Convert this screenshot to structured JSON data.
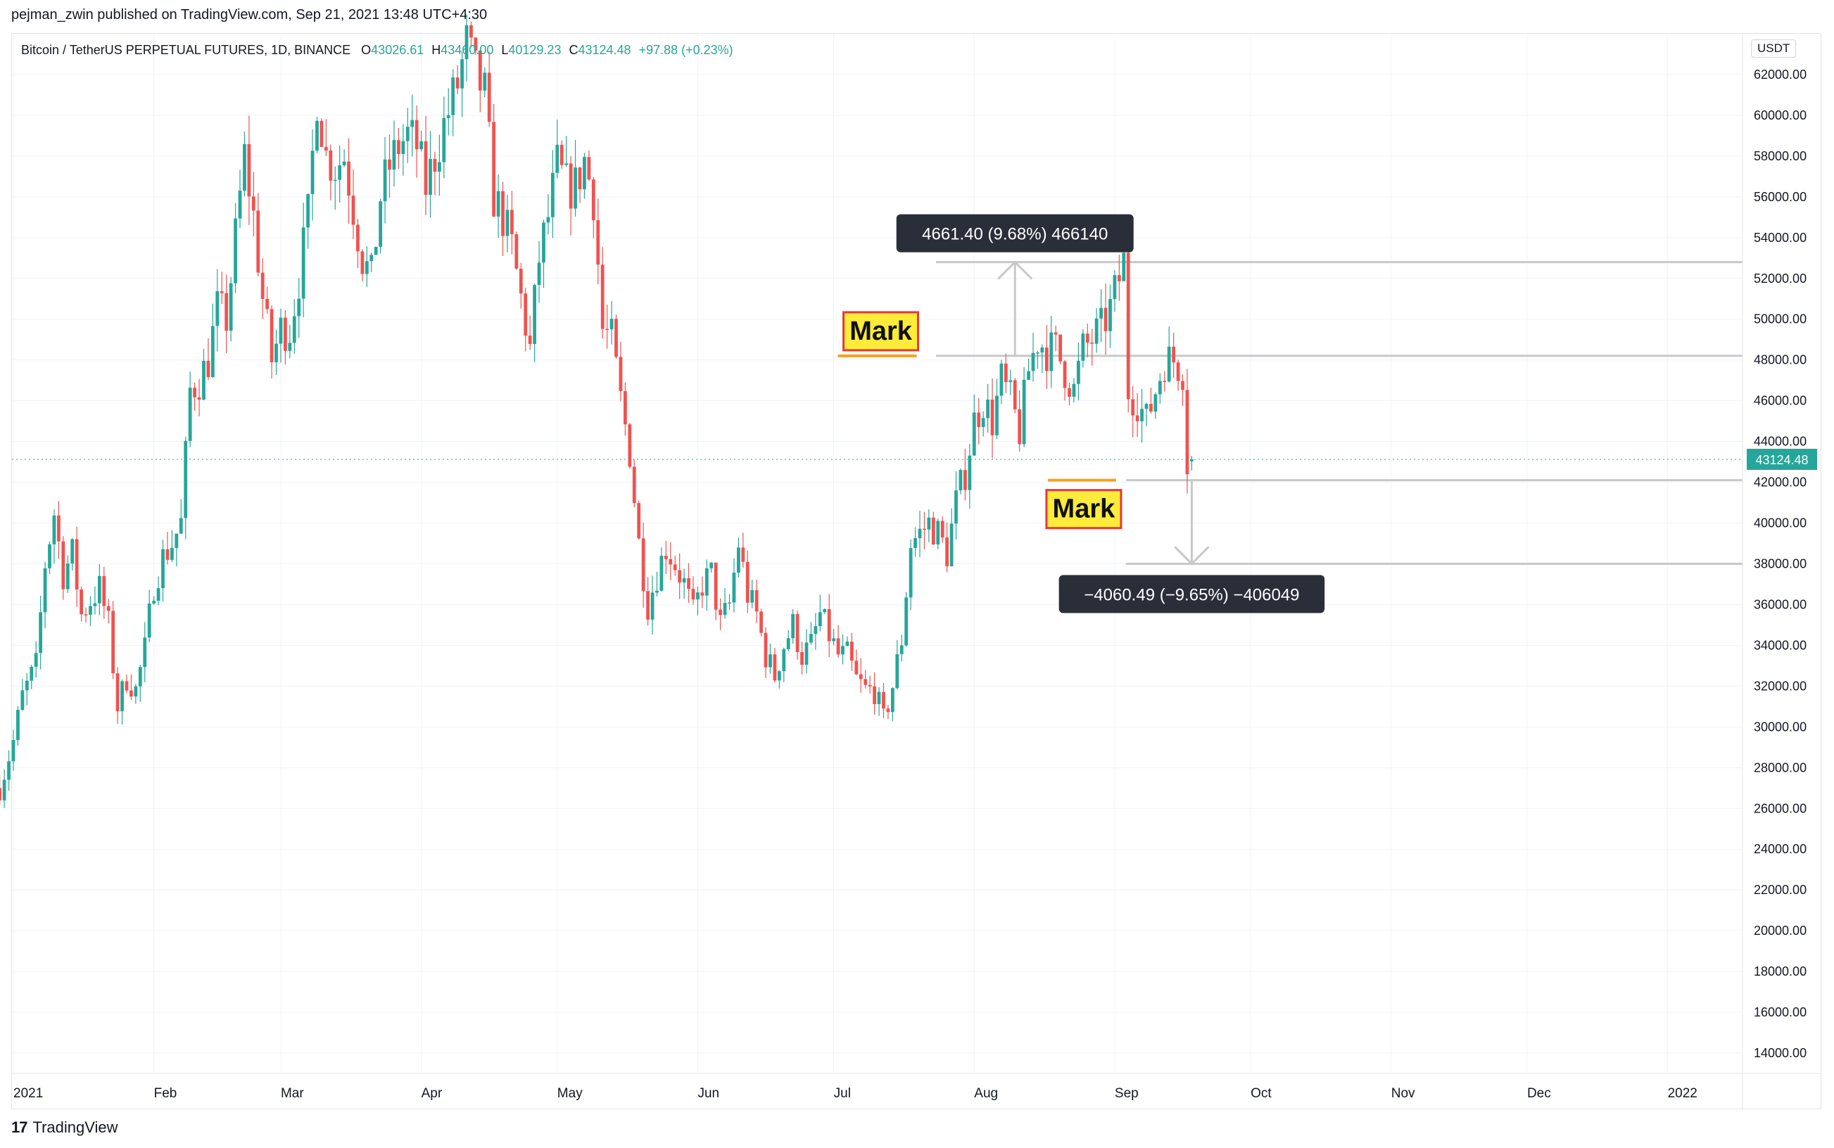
{
  "header": {
    "published_by": "pejman_zwin published on TradingView.com, Sep 21, 2021 13:48 UTC+4:30"
  },
  "legend": {
    "symbol": "Bitcoin / TetherUS PERPETUAL FUTURES, 1D, BINANCE",
    "o_label": "O",
    "o_value": "43026.61",
    "h_label": "H",
    "h_value": "43460.00",
    "l_label": "L",
    "l_value": "40129.23",
    "c_label": "C",
    "c_value": "43124.48",
    "change": "+97.88 (+0.23%)"
  },
  "price_axis": {
    "unit": "USDT",
    "top_partial": "6",
    "last_price_label": "43124.48"
  },
  "footer": {
    "brand": "TradingView",
    "logo_glyph": "17"
  },
  "colors": {
    "up": "#26a69a",
    "down": "#ef5350",
    "mark_line": "#f7a21b",
    "mark_fill": "#ffeb3b",
    "mark_border": "#e53935",
    "level_line": "#c8c8c8",
    "tooltip_bg": "#2a2e39"
  },
  "chart_data": {
    "type": "candlestick",
    "symbol": "BTCUSDT.P",
    "timeframe": "1D",
    "ylim": [
      13000,
      64000
    ],
    "yticks": [
      14000,
      16000,
      18000,
      20000,
      22000,
      24000,
      26000,
      28000,
      30000,
      32000,
      34000,
      36000,
      38000,
      40000,
      42000,
      44000,
      46000,
      48000,
      50000,
      52000,
      54000,
      56000,
      58000,
      60000,
      62000
    ],
    "xticks": [
      {
        "label": "2021",
        "day": 0
      },
      {
        "label": "Feb",
        "day": 31
      },
      {
        "label": "Mar",
        "day": 59
      },
      {
        "label": "Apr",
        "day": 90
      },
      {
        "label": "May",
        "day": 120
      },
      {
        "label": "Jun",
        "day": 151
      },
      {
        "label": "Jul",
        "day": 181
      },
      {
        "label": "Aug",
        "day": 212
      },
      {
        "label": "Sep",
        "day": 243
      },
      {
        "label": "Oct",
        "day": 273
      },
      {
        "label": "Nov",
        "day": 304
      },
      {
        "label": "Dec",
        "day": 334
      },
      {
        "label": "2022",
        "day": 365
      }
    ],
    "last_close": 43124.48,
    "anchors": [
      [
        -3,
        27000
      ],
      [
        0,
        29300
      ],
      [
        2,
        31500
      ],
      [
        5,
        33000
      ],
      [
        7,
        38000
      ],
      [
        9,
        40500
      ],
      [
        11,
        37500
      ],
      [
        13,
        38500
      ],
      [
        15,
        35500
      ],
      [
        17,
        36200
      ],
      [
        19,
        36800
      ],
      [
        21,
        35000
      ],
      [
        23,
        31000
      ],
      [
        25,
        32400
      ],
      [
        27,
        31800
      ],
      [
        29,
        33800
      ],
      [
        31,
        37000
      ],
      [
        33,
        38300
      ],
      [
        35,
        39000
      ],
      [
        37,
        40000
      ],
      [
        39,
        46500
      ],
      [
        41,
        47000
      ],
      [
        43,
        48000
      ],
      [
        45,
        50500
      ],
      [
        47,
        50000
      ],
      [
        49,
        54000
      ],
      [
        51,
        58000
      ],
      [
        53,
        55000
      ],
      [
        55,
        51000
      ],
      [
        57,
        48000
      ],
      [
        59,
        49500
      ],
      [
        61,
        49500
      ],
      [
        63,
        52000
      ],
      [
        65,
        55000
      ],
      [
        67,
        61000
      ],
      [
        69,
        58000
      ],
      [
        71,
        57500
      ],
      [
        73,
        58000
      ],
      [
        75,
        55500
      ],
      [
        77,
        53000
      ],
      [
        79,
        52000
      ],
      [
        81,
        56000
      ],
      [
        83,
        57500
      ],
      [
        85,
        58500
      ],
      [
        87,
        59000
      ],
      [
        89,
        58500
      ],
      [
        91,
        56500
      ],
      [
        93,
        58000
      ],
      [
        95,
        59500
      ],
      [
        98,
        61500
      ],
      [
        100,
        63500
      ],
      [
        102,
        62000
      ],
      [
        104,
        61000
      ],
      [
        106,
        56000
      ],
      [
        108,
        55000
      ],
      [
        110,
        53500
      ],
      [
        112,
        51000
      ],
      [
        114,
        48500
      ],
      [
        116,
        53000
      ],
      [
        118,
        55000
      ],
      [
        120,
        57500
      ],
      [
        122,
        56500
      ],
      [
        124,
        56500
      ],
      [
        126,
        57800
      ],
      [
        128,
        56000
      ],
      [
        130,
        49500
      ],
      [
        132,
        49000
      ],
      [
        134,
        46000
      ],
      [
        136,
        43500
      ],
      [
        138,
        39000
      ],
      [
        140,
        36000
      ],
      [
        142,
        37500
      ],
      [
        144,
        38800
      ],
      [
        146,
        38000
      ],
      [
        148,
        37000
      ],
      [
        150,
        35500
      ],
      [
        152,
        37000
      ],
      [
        154,
        37500
      ],
      [
        156,
        35000
      ],
      [
        158,
        36000
      ],
      [
        160,
        39000
      ],
      [
        162,
        36500
      ],
      [
        164,
        35500
      ],
      [
        166,
        33500
      ],
      [
        168,
        32500
      ],
      [
        170,
        34000
      ],
      [
        172,
        35000
      ],
      [
        174,
        33500
      ],
      [
        176,
        34000
      ],
      [
        178,
        35500
      ],
      [
        180,
        34500
      ],
      [
        182,
        33500
      ],
      [
        184,
        33500
      ],
      [
        186,
        32300
      ],
      [
        188,
        31800
      ],
      [
        190,
        31800
      ],
      [
        192,
        30300
      ],
      [
        194,
        32000
      ],
      [
        196,
        34300
      ],
      [
        198,
        39000
      ],
      [
        200,
        39500
      ],
      [
        202,
        40000
      ],
      [
        204,
        39500
      ],
      [
        206,
        38500
      ],
      [
        208,
        41000
      ],
      [
        210,
        42500
      ],
      [
        212,
        45000
      ],
      [
        214,
        46000
      ],
      [
        216,
        45000
      ],
      [
        218,
        47000
      ],
      [
        220,
        46000
      ],
      [
        222,
        44500
      ],
      [
        224,
        47500
      ],
      [
        226,
        49000
      ],
      [
        228,
        48500
      ],
      [
        230,
        48500
      ],
      [
        232,
        47500
      ],
      [
        234,
        46500
      ],
      [
        236,
        48500
      ],
      [
        238,
        49000
      ],
      [
        240,
        49500
      ],
      [
        242,
        50500
      ],
      [
        244,
        52000
      ],
      [
        245,
        52800
      ],
      [
        246,
        46500
      ],
      [
        248,
        46000
      ],
      [
        250,
        45000
      ],
      [
        252,
        46500
      ],
      [
        254,
        48000
      ],
      [
        256,
        48000
      ],
      [
        258,
        47500
      ],
      [
        259,
        43000
      ],
      [
        260,
        43124
      ]
    ],
    "annotations": [
      {
        "type": "label",
        "text": "Mark",
        "anchor_day": 199,
        "price": 48200
      },
      {
        "type": "label",
        "text": "Mark",
        "anchor_day": 243,
        "price": 42100
      },
      {
        "type": "level",
        "price": 52800
      },
      {
        "type": "level",
        "price": 48200
      },
      {
        "type": "level",
        "price": 42100
      },
      {
        "type": "level",
        "price": 38000
      },
      {
        "type": "measure",
        "text": "4661.40 (9.68%) 466140",
        "from": 48200,
        "to": 52800,
        "day": 221
      },
      {
        "type": "measure",
        "text": "−4060.49 (−9.65%) −406049",
        "from": 42100,
        "to": 38000,
        "day": 260
      }
    ]
  }
}
